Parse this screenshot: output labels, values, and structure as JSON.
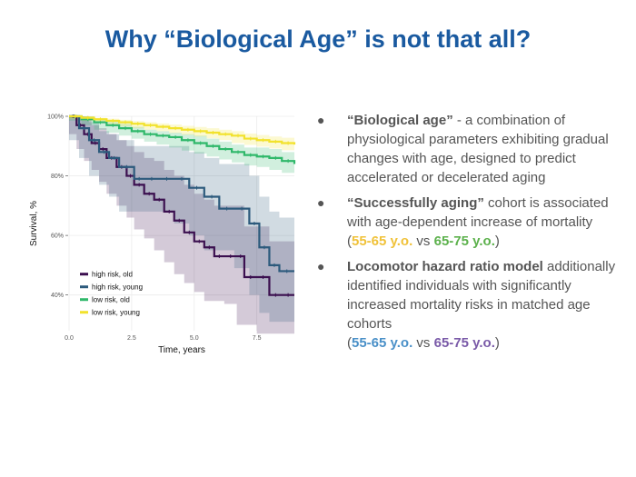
{
  "slide": {
    "title": "Why “Biological Age” is not that all?"
  },
  "bullets": [
    {
      "bold": "“Biological age”",
      "text": " - a combination of physiological parameters exhibiting gradual changes with age, designed to predict accelerated or decelerated aging"
    },
    {
      "bold": "“Successfully aging”",
      "text": " cohort is associated with age-dependent increase of mortality",
      "paren_open": "(",
      "range1": "55-65 y.o.",
      "vs": " vs ",
      "range2": "65-75 y.o.",
      "paren_close": ")"
    },
    {
      "bold": "Locomotor hazard ratio model",
      "text": " additionally identified individuals with significantly increased mortality risks in matched age cohorts",
      "paren_open": "(",
      "range1": "55-65 y.o.",
      "vs": " vs ",
      "range2": "65-75 y.o.",
      "paren_close": ")"
    }
  ],
  "colors": {
    "title": "#1a5aa0",
    "high_risk_old": "#3b0f4f",
    "high_risk_young": "#2c5a7c",
    "low_risk_old": "#2fb86a",
    "low_risk_young": "#f2e22c",
    "range_yellow": "#f0c23a",
    "range_green": "#5cb14c",
    "range_blue": "#4a90c8",
    "range_purple": "#7a5aa8"
  },
  "chart_data": {
    "type": "line",
    "subtype": "kaplan-meier step curves with confidence bands",
    "xlabel": "Time, years",
    "ylabel": "Survival, %",
    "xlim": [
      0,
      9
    ],
    "ylim": [
      0.28,
      1.0
    ],
    "xticks": [
      0,
      2.5,
      5,
      7.5
    ],
    "xtick_labels": [
      "0.0",
      "2.5",
      "5.0",
      "7.5"
    ],
    "yticks": [
      0.4,
      0.6,
      0.8,
      1.0
    ],
    "ytick_labels": [
      "40%",
      "60%",
      "80%",
      "100%"
    ],
    "grid": true,
    "legend_position": "bottom-left",
    "series": [
      {
        "name": "high risk, old",
        "color": "#3b0f4f",
        "x": [
          0,
          0.3,
          0.6,
          0.9,
          1.2,
          1.5,
          1.9,
          2.3,
          2.6,
          3.0,
          3.4,
          3.8,
          4.2,
          4.6,
          5.0,
          5.4,
          5.8,
          6.2,
          6.7,
          7.0,
          7.5,
          8.0,
          8.5,
          9.0
        ],
        "y": [
          1.0,
          0.97,
          0.94,
          0.91,
          0.89,
          0.86,
          0.83,
          0.8,
          0.77,
          0.74,
          0.72,
          0.68,
          0.65,
          0.61,
          0.58,
          0.56,
          0.53,
          0.53,
          0.53,
          0.46,
          0.46,
          0.4,
          0.4,
          0.4
        ],
        "lower": [
          1.0,
          0.94,
          0.89,
          0.85,
          0.82,
          0.78,
          0.74,
          0.7,
          0.66,
          0.62,
          0.59,
          0.55,
          0.51,
          0.47,
          0.44,
          0.41,
          0.38,
          0.38,
          0.37,
          0.3,
          0.3,
          0.27,
          0.27,
          0.27
        ],
        "upper": [
          1.0,
          1.0,
          0.99,
          0.97,
          0.96,
          0.94,
          0.92,
          0.9,
          0.88,
          0.86,
          0.85,
          0.82,
          0.8,
          0.77,
          0.74,
          0.72,
          0.7,
          0.7,
          0.7,
          0.63,
          0.63,
          0.58,
          0.58,
          0.58
        ]
      },
      {
        "name": "high risk, young",
        "color": "#2c5a7c",
        "x": [
          0,
          0.4,
          0.8,
          1.2,
          1.6,
          2.0,
          2.6,
          3.0,
          3.6,
          4.2,
          4.8,
          5.4,
          6.0,
          6.6,
          7.2,
          7.6,
          8.0,
          8.4,
          9.0
        ],
        "y": [
          1.0,
          0.96,
          0.92,
          0.88,
          0.86,
          0.83,
          0.79,
          0.79,
          0.79,
          0.79,
          0.76,
          0.73,
          0.69,
          0.69,
          0.64,
          0.56,
          0.5,
          0.48,
          0.48
        ],
        "lower": [
          1.0,
          0.92,
          0.86,
          0.8,
          0.77,
          0.73,
          0.68,
          0.68,
          0.68,
          0.68,
          0.64,
          0.6,
          0.55,
          0.55,
          0.49,
          0.4,
          0.34,
          0.31,
          0.31
        ],
        "upper": [
          1.0,
          1.0,
          0.98,
          0.95,
          0.94,
          0.92,
          0.9,
          0.9,
          0.9,
          0.9,
          0.88,
          0.86,
          0.84,
          0.84,
          0.8,
          0.73,
          0.68,
          0.66,
          0.66
        ]
      },
      {
        "name": "low risk, old",
        "color": "#2fb86a",
        "x": [
          0,
          0.5,
          1.0,
          1.5,
          2.0,
          2.5,
          3.0,
          3.5,
          4.0,
          4.5,
          5.0,
          5.5,
          6.0,
          6.5,
          7.0,
          7.5,
          8.0,
          8.5,
          9.0
        ],
        "y": [
          1.0,
          0.99,
          0.98,
          0.97,
          0.96,
          0.95,
          0.94,
          0.935,
          0.93,
          0.92,
          0.91,
          0.9,
          0.89,
          0.88,
          0.87,
          0.865,
          0.86,
          0.85,
          0.84
        ],
        "lower": [
          1.0,
          0.985,
          0.97,
          0.955,
          0.945,
          0.935,
          0.925,
          0.915,
          0.905,
          0.895,
          0.885,
          0.875,
          0.865,
          0.855,
          0.845,
          0.835,
          0.83,
          0.82,
          0.81
        ],
        "upper": [
          1.0,
          1.0,
          0.99,
          0.985,
          0.975,
          0.965,
          0.955,
          0.95,
          0.945,
          0.94,
          0.935,
          0.925,
          0.915,
          0.905,
          0.895,
          0.895,
          0.89,
          0.88,
          0.87
        ]
      },
      {
        "name": "low risk, young",
        "color": "#f2e22c",
        "x": [
          0,
          0.5,
          1.0,
          1.5,
          2.0,
          2.5,
          3.0,
          3.5,
          4.0,
          4.5,
          5.0,
          5.5,
          6.0,
          6.5,
          7.0,
          7.5,
          8.0,
          8.5,
          9.0
        ],
        "y": [
          1.0,
          0.995,
          0.99,
          0.985,
          0.98,
          0.975,
          0.97,
          0.965,
          0.96,
          0.955,
          0.95,
          0.945,
          0.94,
          0.935,
          0.925,
          0.92,
          0.915,
          0.91,
          0.905
        ],
        "lower": [
          1.0,
          0.99,
          0.985,
          0.978,
          0.972,
          0.966,
          0.96,
          0.955,
          0.95,
          0.944,
          0.938,
          0.932,
          0.926,
          0.92,
          0.91,
          0.904,
          0.898,
          0.892,
          0.886
        ],
        "upper": [
          1.0,
          1.0,
          0.995,
          0.992,
          0.988,
          0.984,
          0.98,
          0.976,
          0.972,
          0.968,
          0.964,
          0.96,
          0.955,
          0.95,
          0.942,
          0.937,
          0.932,
          0.928,
          0.924
        ]
      }
    ]
  }
}
